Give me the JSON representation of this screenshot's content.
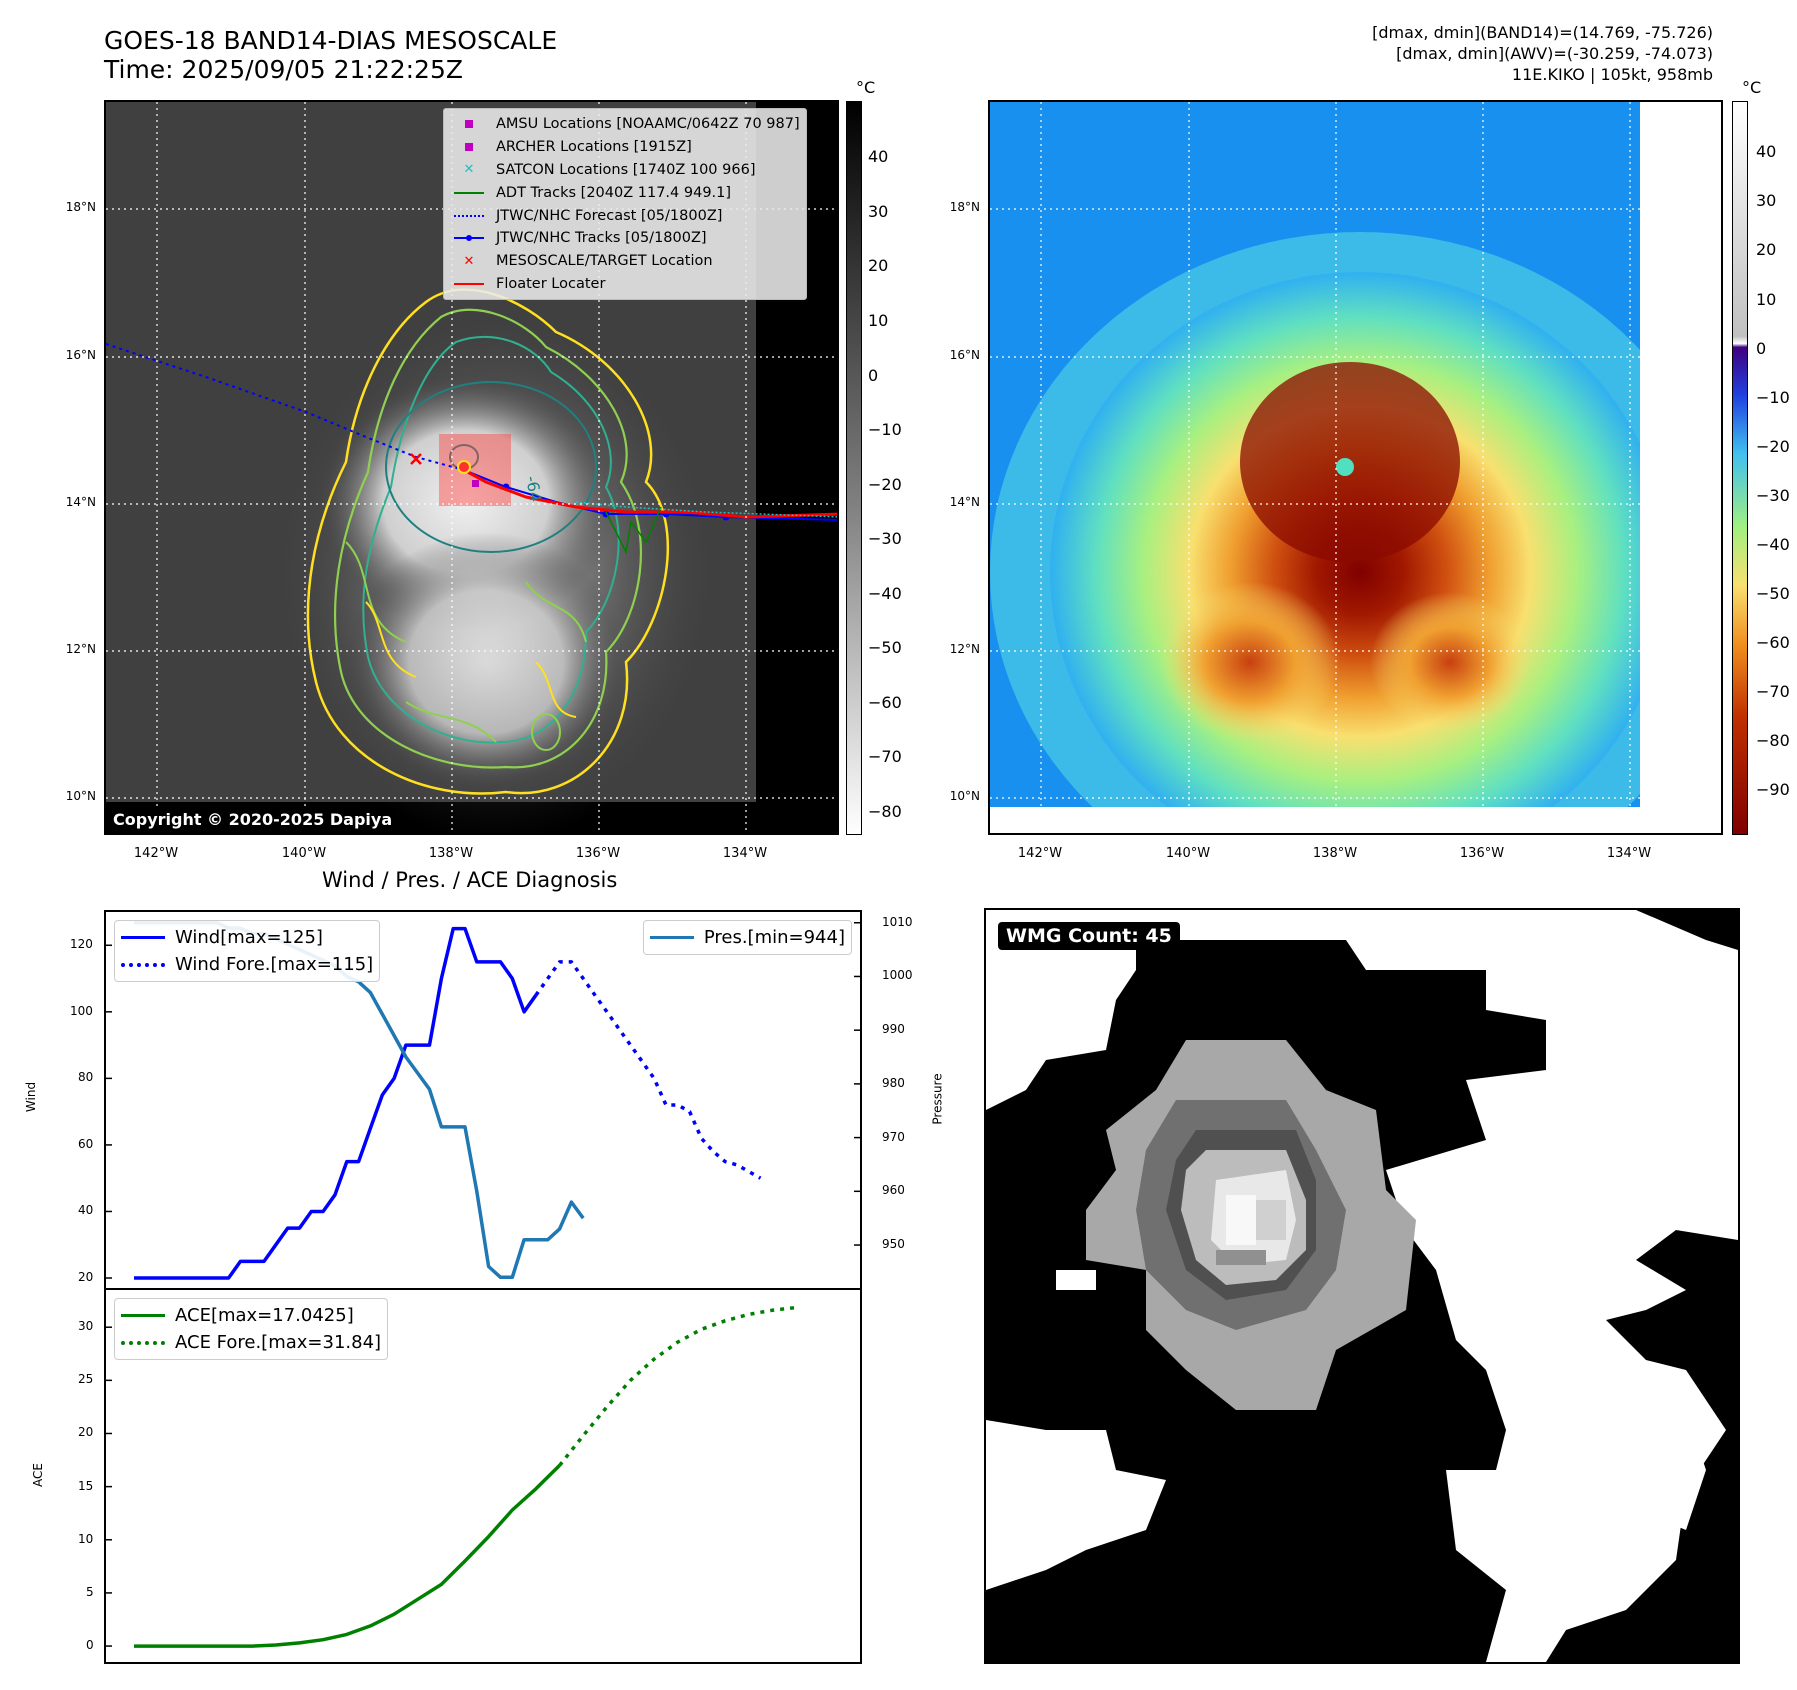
{
  "header": {
    "title": "GOES-18 BAND14-DIAS MESOSCALE",
    "time": "Time: 2025/09/05 21:22:25Z",
    "stats": [
      "[dmax, dmin](BAND14)=(14.769, -75.726)",
      "[dmax, dmin](AWV)=(-30.259, -74.073)",
      "11E.KIKO | 105kt, 958mb"
    ]
  },
  "maps": {
    "lat_labels": [
      "18°N",
      "16°N",
      "14°N",
      "12°N",
      "10°N"
    ],
    "lon_labels": [
      "142°W",
      "140°W",
      "138°W",
      "136°W",
      "134°W"
    ],
    "left": {
      "legend": [
        {
          "label": "AMSU Locations [NOAAMC/0642Z 70 987]",
          "marker": "square",
          "color": "#c000c0"
        },
        {
          "label": "ARCHER Locations [1915Z]",
          "marker": "square",
          "color": "#c000c0"
        },
        {
          "label": "SATCON Locations [1740Z 100 966]",
          "marker": "x",
          "color": "#20c0c0"
        },
        {
          "label": "ADT Tracks [2040Z 117.4 949.1]",
          "marker": "line",
          "color": "#008000"
        },
        {
          "label": "JTWC/NHC Forecast [05/1800Z]",
          "marker": "dotted",
          "color": "#0000ff"
        },
        {
          "label": "JTWC/NHC Tracks [05/1800Z]",
          "marker": "line-dot",
          "color": "#0000ff"
        },
        {
          "label": "MESOSCALE/TARGET Location",
          "marker": "x",
          "color": "#ff0000"
        },
        {
          "label": "Floater Locater",
          "marker": "line",
          "color": "#ff0000"
        }
      ],
      "copyright": "Copyright © 2020-2025 Dapiya",
      "contour_label": "-64",
      "colorbar_unit": "°C",
      "colorbar_ticks": [
        "40",
        "30",
        "20",
        "10",
        "0",
        "−10",
        "−20",
        "−30",
        "−40",
        "−50",
        "−60",
        "−70",
        "−80"
      ]
    },
    "right": {
      "colorbar_unit": "°C",
      "colorbar_ticks": [
        "40",
        "30",
        "20",
        "10",
        "0",
        "−10",
        "−20",
        "−30",
        "−40",
        "−50",
        "−60",
        "−70",
        "−80",
        "−90"
      ]
    }
  },
  "wmg": {
    "badge": "WMG Count: 45"
  },
  "chart_data": [
    {
      "type": "line",
      "title": "Wind / Pres. / ACE Diagnosis",
      "ylabel": "Wind",
      "y2label": "Pressure",
      "ylim": [
        17,
        130
      ],
      "y2lim": [
        942,
        1012
      ],
      "yticks": [
        "120",
        "100",
        "80",
        "60",
        "40",
        "20"
      ],
      "y2ticks": [
        "1010",
        "1000",
        "990",
        "980",
        "970",
        "960",
        "950"
      ],
      "x": [
        0,
        1,
        2,
        3,
        4,
        5,
        6,
        7,
        8,
        9,
        10,
        11,
        12,
        13,
        14,
        15,
        16,
        17,
        18,
        19,
        20,
        21,
        22,
        23,
        24,
        25,
        26,
        27,
        28,
        29,
        30,
        31,
        32,
        33,
        34,
        35,
        36,
        37,
        38,
        39,
        40,
        41,
        42,
        43,
        44,
        45,
        46,
        47,
        48,
        49,
        50
      ],
      "series": [
        {
          "name": "Wind[max=125]",
          "style": "solid",
          "color": "#0000ff",
          "values": [
            [
              0,
              20
            ],
            [
              1,
              20
            ],
            [
              2,
              20
            ],
            [
              3,
              20
            ],
            [
              4,
              20
            ],
            [
              5,
              20
            ],
            [
              6,
              20
            ],
            [
              7,
              20
            ],
            [
              8,
              20
            ],
            [
              9,
              25
            ],
            [
              10,
              25
            ],
            [
              11,
              25
            ],
            [
              12,
              30
            ],
            [
              13,
              35
            ],
            [
              14,
              35
            ],
            [
              15,
              40
            ],
            [
              16,
              40
            ],
            [
              17,
              45
            ],
            [
              18,
              55
            ],
            [
              19,
              55
            ],
            [
              20,
              65
            ],
            [
              21,
              75
            ],
            [
              22,
              80
            ],
            [
              23,
              90
            ],
            [
              24,
              90
            ],
            [
              25,
              90
            ],
            [
              26,
              110
            ],
            [
              27,
              125
            ],
            [
              28,
              125
            ],
            [
              29,
              115
            ],
            [
              30,
              115
            ],
            [
              31,
              115
            ],
            [
              32,
              110
            ],
            [
              33,
              100
            ],
            [
              34,
              105
            ]
          ]
        },
        {
          "name": "Wind Fore.[max=115]",
          "style": "dotted",
          "color": "#0000ff",
          "values": [
            [
              34,
              105
            ],
            [
              35,
              110
            ],
            [
              36,
              115
            ],
            [
              37,
              115
            ],
            [
              38,
              110
            ],
            [
              39,
              105
            ],
            [
              40,
              100
            ],
            [
              41,
              95
            ],
            [
              42,
              90
            ],
            [
              43,
              85
            ],
            [
              44,
              80
            ],
            [
              45,
              72
            ],
            [
              46,
              72
            ],
            [
              47,
              70
            ],
            [
              48,
              62
            ],
            [
              49,
              58
            ],
            [
              50,
              55
            ],
            [
              51,
              54
            ],
            [
              52,
              52
            ],
            [
              53,
              50
            ]
          ]
        },
        {
          "name": "Pres.[min=944]",
          "style": "solid",
          "color": "#1f77b4",
          "axis": "y2",
          "values": [
            [
              0,
              1010
            ],
            [
              1,
              1010
            ],
            [
              2,
              1010
            ],
            [
              3,
              1010
            ],
            [
              4,
              1010
            ],
            [
              5,
              1010
            ],
            [
              6,
              1010
            ],
            [
              7,
              1010
            ],
            [
              8,
              1009
            ],
            [
              9,
              1009
            ],
            [
              10,
              1008
            ],
            [
              11,
              1008
            ],
            [
              12,
              1007
            ],
            [
              13,
              1006
            ],
            [
              14,
              1005
            ],
            [
              15,
              1004
            ],
            [
              16,
              1003
            ],
            [
              17,
              1002
            ],
            [
              18,
              1000
            ],
            [
              19,
              999
            ],
            [
              20,
              997
            ],
            [
              21,
              993
            ],
            [
              22,
              989
            ],
            [
              23,
              985
            ],
            [
              24,
              982
            ],
            [
              25,
              979
            ],
            [
              26,
              972
            ],
            [
              27,
              972
            ],
            [
              28,
              972
            ],
            [
              29,
              960
            ],
            [
              30,
              946
            ],
            [
              31,
              944
            ],
            [
              32,
              944
            ],
            [
              33,
              951
            ],
            [
              34,
              951
            ],
            [
              35,
              951
            ],
            [
              36,
              953
            ],
            [
              37,
              958
            ],
            [
              38,
              955
            ]
          ]
        }
      ]
    },
    {
      "type": "line",
      "ylabel": "ACE",
      "ylim": [
        -1.5,
        33.5
      ],
      "yticks": [
        "30",
        "25",
        "20",
        "15",
        "10",
        "5",
        "0"
      ],
      "series": [
        {
          "name": "ACE[max=17.0425]",
          "style": "solid",
          "color": "#008000",
          "values": [
            [
              0,
              0
            ],
            [
              5,
              0
            ],
            [
              10,
              0
            ],
            [
              12,
              0.1
            ],
            [
              14,
              0.3
            ],
            [
              16,
              0.6
            ],
            [
              18,
              1.1
            ],
            [
              20,
              1.9
            ],
            [
              22,
              3.0
            ],
            [
              24,
              4.4
            ],
            [
              26,
              5.8
            ],
            [
              28,
              8.0
            ],
            [
              30,
              10.3
            ],
            [
              32,
              12.8
            ],
            [
              34,
              14.8
            ],
            [
              36,
              17.0
            ]
          ]
        },
        {
          "name": "ACE Fore.[max=31.84]",
          "style": "dotted",
          "color": "#008000",
          "values": [
            [
              36,
              17.0
            ],
            [
              38,
              19.8
            ],
            [
              40,
              22.5
            ],
            [
              42,
              25.0
            ],
            [
              44,
              27.0
            ],
            [
              46,
              28.6
            ],
            [
              48,
              29.8
            ],
            [
              50,
              30.6
            ],
            [
              52,
              31.2
            ],
            [
              54,
              31.6
            ],
            [
              56,
              31.84
            ]
          ]
        }
      ]
    }
  ]
}
